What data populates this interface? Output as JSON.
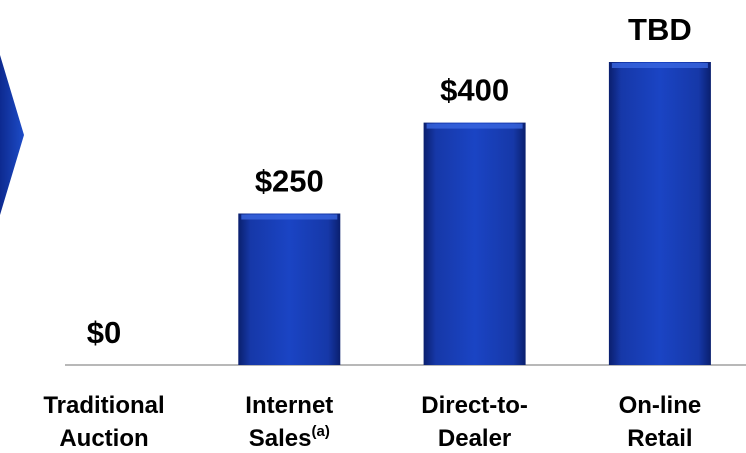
{
  "chart_data": {
    "type": "bar",
    "categories": [
      [
        "Traditional",
        "Auction"
      ],
      [
        "Internet",
        "Sales"
      ],
      [
        "Direct-to-",
        "Dealer"
      ],
      [
        "On-line",
        "Retail"
      ]
    ],
    "category_superscripts": [
      null,
      "(a)",
      null,
      null
    ],
    "values": [
      0,
      250,
      400,
      500
    ],
    "value_labels": [
      "$0",
      "$250",
      "$400",
      "TBD"
    ],
    "color": "#1238a8",
    "ylim": [
      0,
      500
    ]
  }
}
